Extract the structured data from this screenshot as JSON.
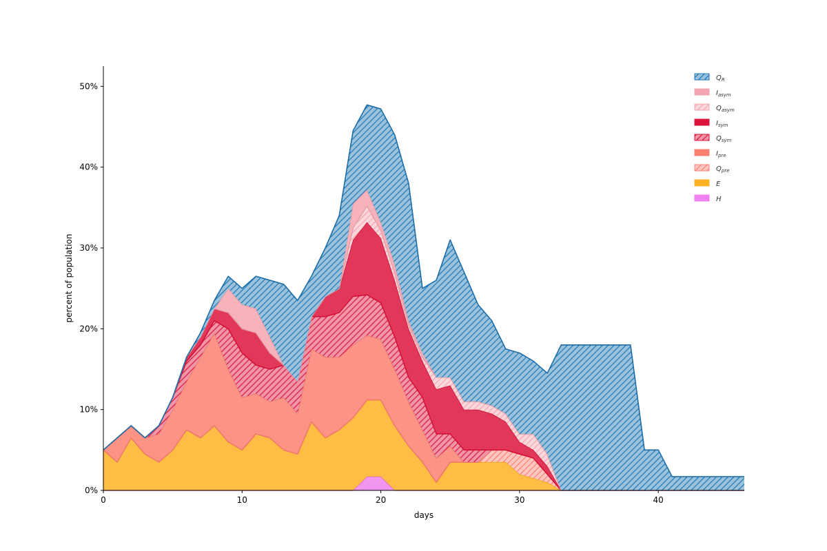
{
  "chart_data": {
    "type": "area",
    "stacked": true,
    "xlabel": "days",
    "ylabel": "percent of population",
    "xlim": [
      0,
      46.2
    ],
    "ylim": [
      0,
      52.5
    ],
    "x_ticks": [
      0,
      10,
      20,
      30,
      40
    ],
    "y_ticks": [
      0,
      10,
      20,
      30,
      40,
      50
    ],
    "y_tick_format": "percent",
    "grid": false,
    "legend_position": "top-right",
    "x": [
      0,
      1,
      2,
      3,
      4,
      5,
      6,
      7,
      8,
      9,
      10,
      11,
      12,
      13,
      14,
      15,
      16,
      17,
      18,
      19,
      20,
      21,
      22,
      23,
      24,
      25,
      26,
      27,
      28,
      29,
      30,
      31,
      32,
      33,
      34,
      35,
      36,
      37,
      38,
      39,
      40,
      41,
      42,
      43,
      44,
      45,
      46.2
    ],
    "series": [
      {
        "name": "H",
        "color": "#ee82ee",
        "hatch": false,
        "values": [
          0,
          0,
          0,
          0,
          0,
          0,
          0,
          0,
          0,
          0,
          0,
          0,
          0,
          0,
          0,
          0,
          0,
          0,
          0,
          1.7,
          1.7,
          0,
          0,
          0,
          0,
          0,
          0,
          0,
          0,
          0,
          0,
          0,
          0,
          0,
          0,
          0,
          0,
          0,
          0,
          0,
          0,
          0,
          0,
          0,
          0,
          0,
          0
        ]
      },
      {
        "name": "E",
        "color": "#ffb225",
        "hatch": false,
        "values": [
          5,
          3.5,
          6.5,
          4.5,
          3.5,
          5,
          7.5,
          6.5,
          8,
          6,
          5,
          7,
          6.5,
          5,
          4.5,
          8.5,
          6.5,
          7.5,
          9,
          9.5,
          9.5,
          8,
          5.5,
          3.5,
          1,
          3.5,
          3.5,
          3.5,
          3.5,
          3.5,
          2,
          1.5,
          1,
          0,
          0,
          0,
          0,
          0,
          0,
          0,
          0,
          0,
          0,
          0,
          0,
          0,
          0
        ]
      },
      {
        "name": "Q_pre",
        "color": "#fa8072",
        "hatch": true,
        "values": [
          0,
          0,
          0,
          0,
          0,
          0,
          0,
          0,
          0,
          0,
          0,
          0,
          0,
          0,
          0,
          0,
          0,
          0,
          0,
          0,
          0,
          0,
          0,
          0,
          0,
          0,
          0,
          0,
          1.5,
          1.5,
          2.5,
          2.5,
          1,
          0,
          0,
          0,
          0,
          0,
          0,
          0,
          0,
          0,
          0,
          0,
          0,
          0,
          0
        ]
      },
      {
        "name": "I_pre",
        "color": "#fa8072",
        "hatch": false,
        "values": [
          0,
          3,
          1.5,
          2,
          3.5,
          5,
          6,
          10,
          11.5,
          9,
          6.5,
          5,
          4.5,
          6.5,
          5,
          9,
          10,
          9,
          9,
          8,
          7.5,
          7,
          5.5,
          4,
          3,
          2,
          0,
          0,
          0,
          0,
          0,
          0,
          0,
          0,
          0,
          0,
          0,
          0,
          0,
          0,
          0,
          0,
          0,
          0,
          0,
          0,
          0
        ]
      },
      {
        "name": "Q_sym",
        "color": "#dc143c",
        "hatch": true,
        "values": [
          0,
          0,
          0,
          0,
          1,
          1.5,
          2.5,
          1.5,
          1.5,
          5,
          5.5,
          3.5,
          4,
          4,
          4,
          4,
          5,
          5.5,
          6,
          5,
          4.5,
          4,
          3,
          4,
          3,
          1.5,
          1.5,
          1.5,
          0,
          0,
          0,
          0,
          0,
          0,
          0,
          0,
          0,
          0,
          0,
          0,
          0,
          0,
          0,
          0,
          0,
          0,
          0
        ]
      },
      {
        "name": "I_sym",
        "color": "#dc143c",
        "hatch": false,
        "values": [
          0,
          0,
          0,
          0,
          0,
          0,
          0.5,
          1,
          1.5,
          2,
          3,
          4,
          2,
          0,
          0,
          0,
          2.5,
          3,
          7,
          9,
          8,
          7,
          6,
          4.5,
          5.5,
          6,
          5,
          5,
          4.5,
          3.5,
          1.5,
          1,
          1,
          0,
          0,
          0,
          0,
          0,
          0,
          0,
          0,
          0,
          0,
          0,
          0,
          0,
          0
        ]
      },
      {
        "name": "Q_asym",
        "color": "#f4a6b0",
        "hatch": true,
        "values": [
          0,
          0,
          0,
          0,
          0,
          0,
          0,
          0,
          0,
          0,
          0,
          0,
          0,
          0,
          0,
          0,
          0,
          0,
          1.5,
          2,
          1,
          1,
          0.5,
          0.5,
          1.5,
          1,
          1,
          1,
          1,
          1,
          1,
          2,
          1.5,
          0,
          0,
          0,
          0,
          0,
          0,
          0,
          0,
          0,
          0,
          0,
          0,
          0,
          0
        ]
      },
      {
        "name": "I_asym",
        "color": "#f4a6b0",
        "hatch": false,
        "values": [
          0,
          0,
          0,
          0,
          0,
          0,
          0,
          0,
          0,
          3,
          3,
          3,
          2,
          0,
          0,
          0,
          0,
          0,
          3,
          2,
          1,
          1,
          0.5,
          0.5,
          0,
          0,
          0,
          0,
          0,
          0,
          0,
          0,
          0,
          0,
          0,
          0,
          0,
          0,
          0,
          0,
          0,
          0,
          0,
          0,
          0,
          0,
          0
        ]
      },
      {
        "name": "Q_R",
        "color": "#1f77b4",
        "hatch": true,
        "values": [
          0,
          0,
          0,
          0,
          0,
          0,
          0,
          0.5,
          1,
          1.5,
          2,
          4,
          7,
          10,
          10,
          5,
          6,
          9,
          9,
          10.5,
          14,
          16,
          17,
          8,
          12,
          17,
          16,
          12,
          10.5,
          8,
          10,
          9,
          10,
          18,
          18,
          18,
          18,
          18,
          18,
          5,
          5,
          1.7,
          1.7,
          1.7,
          1.7,
          1.7,
          1.7
        ]
      }
    ]
  },
  "legend": {
    "entries": [
      {
        "key": "Q_R",
        "main": "Q",
        "sub": "R"
      },
      {
        "key": "I_asym",
        "main": "I",
        "sub": "asym"
      },
      {
        "key": "Q_asym",
        "main": "Q",
        "sub": "asym"
      },
      {
        "key": "I_sym",
        "main": "I",
        "sub": "sym"
      },
      {
        "key": "Q_sym",
        "main": "Q",
        "sub": "sym"
      },
      {
        "key": "I_pre",
        "main": "I",
        "sub": "pre"
      },
      {
        "key": "Q_pre",
        "main": "Q",
        "sub": "pre"
      },
      {
        "key": "E",
        "main": "E",
        "sub": ""
      },
      {
        "key": "H",
        "main": "H",
        "sub": ""
      }
    ]
  }
}
